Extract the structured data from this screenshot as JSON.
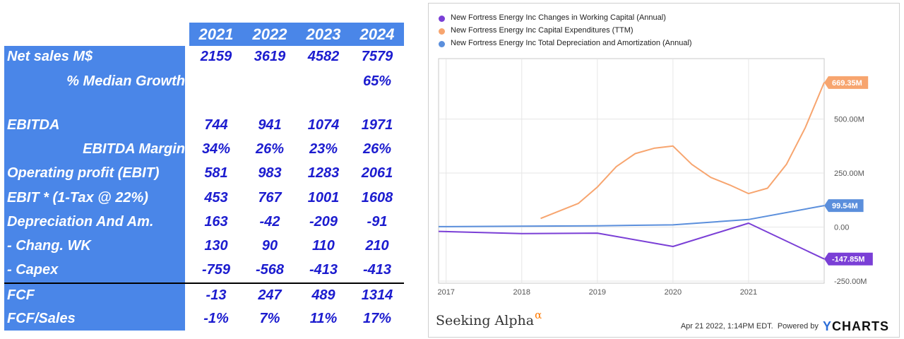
{
  "table": {
    "years": [
      "2021",
      "2022",
      "2023",
      "2024"
    ],
    "rows": [
      {
        "label": "Net sales M$",
        "values": [
          "2159",
          "3619",
          "4582",
          "7579"
        ]
      },
      {
        "label": "% Median Growth",
        "values": [
          "",
          "",
          "",
          "65%"
        ]
      },
      {
        "label": "",
        "values": [
          "",
          "",
          "",
          ""
        ]
      },
      {
        "label": "EBITDA",
        "values": [
          "744",
          "941",
          "1074",
          "1971"
        ]
      },
      {
        "label": "EBITDA Margin",
        "values": [
          "34%",
          "26%",
          "23%",
          "26%"
        ]
      },
      {
        "label": "Operating profit (EBIT)",
        "values": [
          "581",
          "983",
          "1283",
          "2061"
        ]
      },
      {
        "label": "EBIT * (1-Tax @ 22%)",
        "values": [
          "453",
          "767",
          "1001",
          "1608"
        ]
      },
      {
        "label": "Depreciation And Am.",
        "values": [
          "163",
          "-42",
          "-209",
          "-91"
        ]
      },
      {
        "label": "- Chang. WK",
        "values": [
          "130",
          "90",
          "110",
          "210"
        ]
      },
      {
        "label": "- Capex",
        "values": [
          "-759",
          "-568",
          "-413",
          "-413"
        ]
      },
      {
        "label": "FCF",
        "values": [
          "-13",
          "247",
          "489",
          "1314"
        ]
      },
      {
        "label": "FCF/Sales",
        "values": [
          "-1%",
          "7%",
          "11%",
          "17%"
        ]
      }
    ]
  },
  "chart_data": {
    "type": "line",
    "x_ticks": [
      "2017",
      "2018",
      "2019",
      "2020",
      "2021"
    ],
    "y_ticks": [
      "-250.00M",
      "0.00",
      "250.00M",
      "500.00M"
    ],
    "ylim": [
      -260,
      780
    ],
    "xlim": [
      2016.9,
      2022.0
    ],
    "series": [
      {
        "name": "New Fortress Energy Inc Changes in Working Capital (Annual)",
        "color": "#7a3fd6",
        "x": [
          2016.9,
          2018.0,
          2019.0,
          2020.0,
          2021.0,
          2022.0
        ],
        "y": [
          -20,
          -30,
          -28,
          -90,
          18,
          -147.85
        ],
        "end_label": "-147.85M"
      },
      {
        "name": "New Fortress Energy Inc Capital Expenditures (TTM)",
        "color": "#f7a56f",
        "x": [
          2018.25,
          2018.75,
          2019.0,
          2019.25,
          2019.5,
          2019.75,
          2020.0,
          2020.25,
          2020.5,
          2020.75,
          2021.0,
          2021.25,
          2021.5,
          2021.75,
          2022.0
        ],
        "y": [
          40,
          110,
          185,
          280,
          340,
          365,
          375,
          290,
          230,
          195,
          155,
          180,
          290,
          460,
          669.35
        ],
        "end_label": "669.35M"
      },
      {
        "name": "New Fortress Energy Inc Total Depreciation and Amortization (Annual)",
        "color": "#5b8fdc",
        "x": [
          2016.9,
          2018.0,
          2019.0,
          2020.0,
          2021.0,
          2022.0
        ],
        "y": [
          2,
          4,
          6,
          10,
          35,
          99.54
        ],
        "end_label": "99.54M"
      }
    ]
  },
  "branding": {
    "left_text": "Seeking Alpha",
    "alpha_symbol": "α",
    "footer_date": "Apr 21 2022, 1:14PM EDT.",
    "powered_by": "Powered by",
    "logo_y": "Y",
    "logo_rest": "CHARTS"
  }
}
